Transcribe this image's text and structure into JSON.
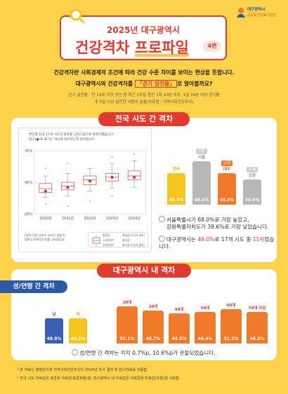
{
  "logo": {
    "org1": "대구광역시",
    "org2": "공공보건의료지원단"
  },
  "header": {
    "subtitle": "2025년 대구광역시",
    "title_a": "건강격차 ",
    "title_b": "프로파일",
    "edition": "4편"
  },
  "intro": {
    "line1": "건강격차란 사회경제적 조건에 따라 건강 수준 차이를 보이는 현상을 뜻합니다.",
    "line2_pre": "대구광역시의 건강격차를 ",
    "line2_em": "「걷기 실천율」",
    "line2_post": "로 알아볼까요?",
    "note1": "걷기 실천율 : 만 19세 이상 성인 중 최근 1주일 동안 1회 10분 이상, 1일 30분 이상 걷기를",
    "note2": "주 5일 이상 실천한 사람의 분율(자료원 : 지역사회건강조사)"
  },
  "section1": {
    "tag": "전국 시도 간 격차",
    "chart_desc1": "연도별 전국 17개 시도의 분포를 상자그림으로 표현하였습니다.",
    "chart_desc2": "대구(●)로 표기는 어디에 위치하는지 알아봅시다.",
    "foot1": "[상자그림] 상자의 길이는 값들이",
    "foot2": "얼마나 퍼져있는지를 나타냅니다.",
    "legend": [
      "최댓값",
      "1사분위수",
      "3사분위수",
      "최대값(이상치 제외)",
      "중앙값",
      "최소값(이상치 제외)"
    ],
    "statement1": "서울특별시가 68.0%로 가장 높았고,",
    "statement2": "강원특별자치도가 39.6%로 가장 낮았습니다.",
    "statement3_pre": "대구광역시는 ",
    "statement3_em1": "49.0%",
    "statement3_mid": "로 17개 시도 중 ",
    "statement3_em2": "11위",
    "statement3_post": "였습니다."
  },
  "section2": {
    "tag": "대구광역시 내 격차",
    "subtag": "성/연령 간 격차",
    "statement": "성/연령 간 격차는 각각 0.7%p, 10.6%p가 관찰되었습니다."
  },
  "notes": [
    "본 자료는 질병관리청 지역사회건강조사의 2024년 조사 결과 및 원시자료를 이용함.",
    "전국 시도 자료값은 표준화 자료값(표준화율)을, 대구광역시 내 자료값은 비표준화 자료값(조율)을 사용함."
  ],
  "chart_data": [
    {
      "type": "boxplot",
      "categories": [
        "2020년",
        "2021년",
        "2022년",
        "2023년",
        "2024년"
      ],
      "yticks": [
        "70%",
        "45%",
        "20%"
      ],
      "ylim": [
        20,
        70
      ],
      "boxes": [
        {
          "min": 33,
          "q1": 37,
          "median": 40,
          "q3": 44,
          "max": 50
        },
        {
          "min": 34,
          "q1": 39,
          "median": 42,
          "q3": 45,
          "max": 52
        },
        {
          "min": 38,
          "q1": 43,
          "median": 47,
          "q3": 50,
          "max": 56
        },
        {
          "min": 40,
          "q1": 46,
          "median": 49,
          "q3": 52,
          "max": 60
        },
        {
          "min": 41,
          "q1": 47,
          "median": 50,
          "q3": 54,
          "max": 62
        }
      ],
      "outliers": [
        [
          0,
          28
        ],
        [
          0,
          56
        ],
        [
          1,
          26
        ],
        [
          1,
          60
        ],
        [
          2,
          30
        ],
        [
          3,
          34
        ],
        [
          3,
          65
        ],
        [
          4,
          67
        ]
      ],
      "daegu": [
        38,
        41,
        46,
        49,
        49
      ]
    },
    {
      "type": "bar",
      "categories": [
        "전국",
        "서울",
        "대구",
        "강원"
      ],
      "ranks": [
        "",
        "1위",
        "11위",
        "17위"
      ],
      "values": [
        49.7,
        68.0,
        49.0,
        39.6
      ],
      "colors": [
        "#f5c520",
        "#b8b8b8",
        "#f07a2a",
        "#b8b8b8"
      ]
    },
    {
      "type": "bar",
      "categories": [
        "남",
        "여"
      ],
      "values": [
        48.9,
        48.2
      ],
      "colors": [
        "#3d5fb3",
        "#f5c520"
      ]
    },
    {
      "type": "bar",
      "categories": [
        "20대",
        "30대",
        "40대",
        "50대",
        "60대",
        "70대 이상"
      ],
      "values": [
        55.1,
        48.7,
        44.5,
        46.6,
        51.2,
        46.2
      ],
      "colors": [
        "#f07a2a",
        "#f07a2a",
        "#f07a2a",
        "#f07a2a",
        "#f07a2a",
        "#f07a2a"
      ]
    }
  ]
}
